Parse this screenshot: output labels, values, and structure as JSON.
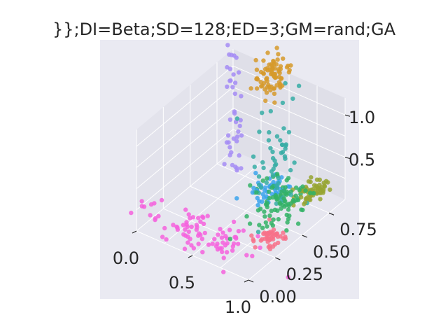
{
  "chart_data": {
    "type": "scatter",
    "title": "}};DI=Beta;SD=128;ED=3;GM=rand;GA",
    "projection": "3d",
    "grid": true,
    "xlabel": "",
    "ylabel": "",
    "zlabel": "",
    "x_ticks": [
      "0.0",
      "0.5",
      "1.0"
    ],
    "y_ticks": [
      "0.00",
      "0.25",
      "0.50",
      "0.75"
    ],
    "z_ticks": [
      "0.5",
      "1.0"
    ],
    "xlim": [
      0,
      1
    ],
    "ylim": [
      0,
      0.9
    ],
    "zlim": [
      0,
      1.2
    ],
    "clusters": [
      {
        "color": "#a48cf4",
        "center": [
          0.18,
          0.72,
          0.78
        ],
        "spread": [
          0.03,
          0.03,
          0.45
        ],
        "n": 40
      },
      {
        "color": "#d69a2c",
        "center": [
          0.32,
          0.92,
          1.05
        ],
        "spread": [
          0.06,
          0.06,
          0.1
        ],
        "n": 80
      },
      {
        "color": "#36ada4",
        "center": [
          0.78,
          0.5,
          0.68
        ],
        "spread": [
          0.08,
          0.06,
          0.35
        ],
        "n": 60
      },
      {
        "color": "#f461dd",
        "center": [
          0.45,
          0.12,
          0.12
        ],
        "spread": [
          0.25,
          0.08,
          0.05
        ],
        "n": 90
      },
      {
        "color": "#3ba3ec",
        "center": [
          0.65,
          0.55,
          0.3
        ],
        "spread": [
          0.06,
          0.06,
          0.04
        ],
        "n": 45
      },
      {
        "color": "#32b166",
        "center": [
          0.8,
          0.5,
          0.3
        ],
        "spread": [
          0.1,
          0.1,
          0.08
        ],
        "n": 90
      },
      {
        "color": "#97a431",
        "center": [
          0.9,
          0.7,
          0.26
        ],
        "spread": [
          0.06,
          0.06,
          0.04
        ],
        "n": 60
      },
      {
        "color": "#f77189",
        "center": [
          0.92,
          0.3,
          0.14
        ],
        "spread": [
          0.05,
          0.05,
          0.04
        ],
        "n": 45
      }
    ]
  }
}
